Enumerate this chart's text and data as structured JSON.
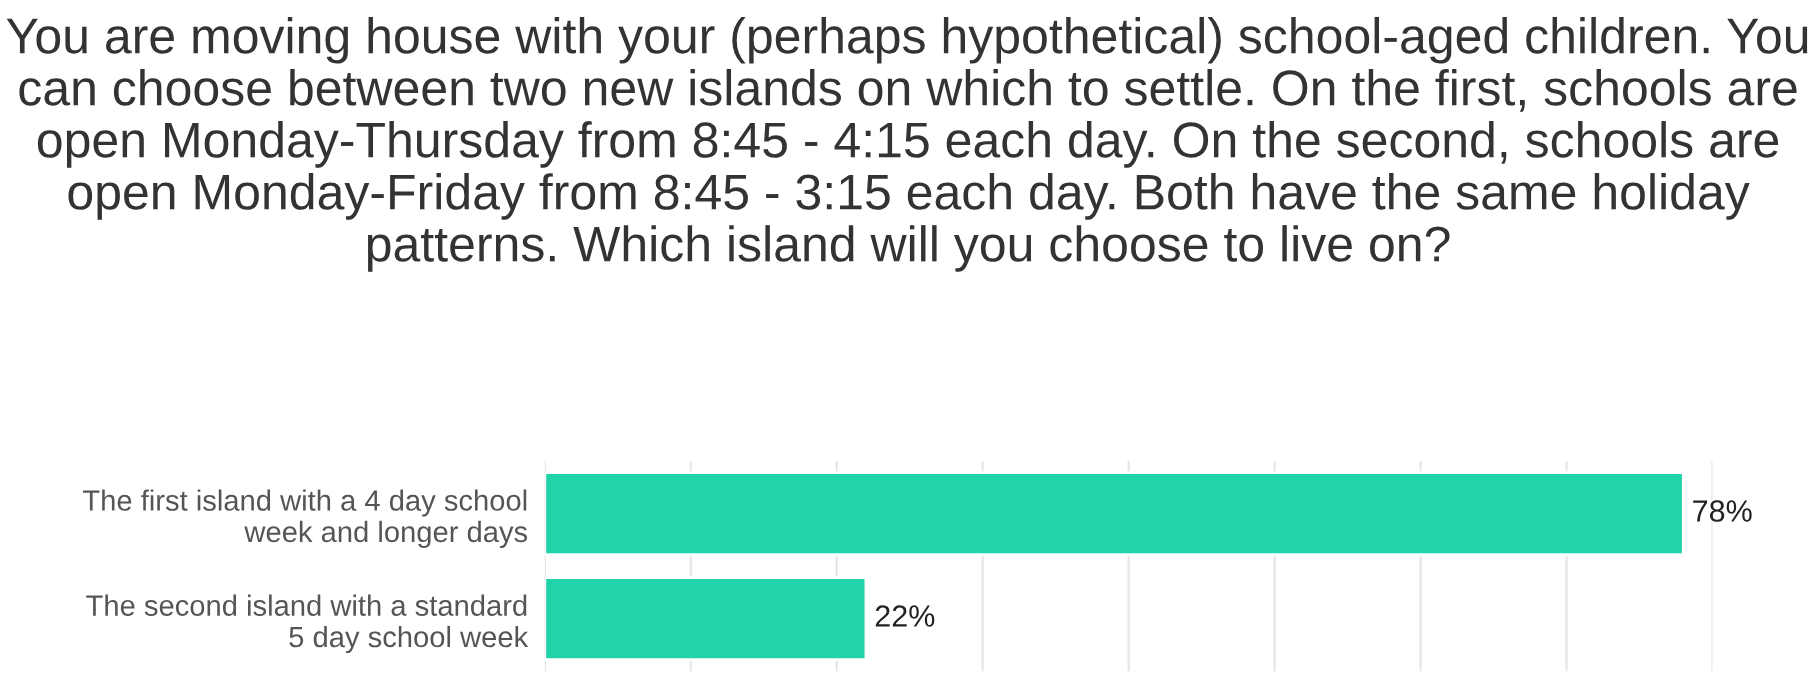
{
  "chart_data": {
    "type": "bar",
    "orientation": "horizontal",
    "title": "You are moving house with your (perhaps hypothetical) school-aged children. You can choose between two new islands on which to settle. On the first, schools are open Monday-Thursday from 8:45 - 4:15 each day. On the second, schools are open Monday-Friday from 8:45 - 3:15 each day. Both have the same holiday patterns. Which island will you choose to live on?",
    "categories": [
      "The first island with a 4 day school\nweek and longer days",
      "The second island with a standard\n5 day school week"
    ],
    "values": [
      78,
      22
    ],
    "value_labels": [
      "78%",
      "22%"
    ],
    "color": "#20d3a8",
    "xlim": [
      0,
      80
    ],
    "xticks": [
      {
        "value": 0,
        "label": null
      },
      {
        "value": 10,
        "label": null
      },
      {
        "value": 20,
        "label": null
      },
      {
        "value": 30,
        "label": null
      },
      {
        "value": 40,
        "label": null
      },
      {
        "value": 50,
        "label": null
      },
      {
        "value": 60,
        "label": null
      },
      {
        "value": 70,
        "label": null
      },
      {
        "value": 80,
        "label": null
      }
    ],
    "grid": "x",
    "tick_labels": "y"
  }
}
